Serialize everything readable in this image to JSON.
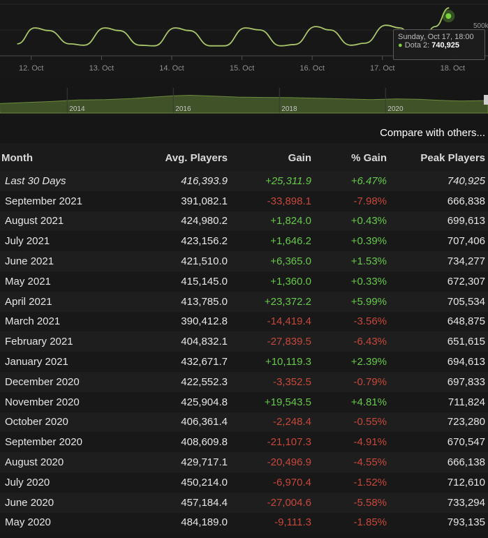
{
  "chart_data": [
    {
      "type": "line",
      "x_ticks": [
        "12. Oct",
        "13. Oct",
        "14. Oct",
        "15. Oct",
        "16. Oct",
        "17. Oct",
        "18. Oct"
      ],
      "y_tick": "500k",
      "series": [
        {
          "name": "Dota 2",
          "x": [
            11.8,
            12.05,
            12.25,
            12.55,
            12.75,
            13.05,
            13.25,
            13.55,
            13.75,
            14.05,
            14.25,
            14.55,
            14.75,
            15.05,
            15.25,
            15.55,
            15.75,
            16.05,
            16.25,
            16.55,
            16.75,
            17.05,
            17.25,
            17.45,
            17.55,
            17.75,
            17.95
          ],
          "y": [
            470000,
            590000,
            570000,
            470000,
            460000,
            590000,
            570000,
            460000,
            455000,
            590000,
            570000,
            455000,
            455000,
            590000,
            575000,
            455000,
            465000,
            600000,
            575000,
            460000,
            475000,
            610000,
            590000,
            490000,
            470000,
            600000,
            740925
          ]
        }
      ],
      "tooltip": {
        "date": "Sunday, Oct 17, 18:00",
        "series": "Dota 2:",
        "value": "740,925"
      }
    },
    {
      "type": "area",
      "x_ticks": [
        "2014",
        "2016",
        "2018",
        "2020"
      ],
      "x": [
        2012.7,
        2013.2,
        2013.7,
        2014.2,
        2014.7,
        2015.2,
        2015.6,
        2016.0,
        2016.3,
        2016.7,
        2017.2,
        2017.7,
        2018.2,
        2018.7,
        2019.2,
        2019.7,
        2020.2,
        2020.6,
        2021.0,
        2021.4,
        2021.8
      ],
      "y": [
        0.52,
        0.58,
        0.64,
        0.72,
        0.74,
        0.8,
        0.88,
        0.95,
        0.98,
        0.94,
        0.88,
        0.86,
        0.85,
        0.82,
        0.78,
        0.74,
        0.78,
        0.76,
        0.7,
        0.66,
        0.68
      ]
    },
    {
      "type": "table",
      "columns": [
        "Month",
        "Avg. Players",
        "Gain",
        "% Gain",
        "Peak Players"
      ],
      "rows": [
        [
          "Last 30 Days",
          "416,393.9",
          "+25,311.9",
          "+6.47%",
          "740,925"
        ],
        [
          "September 2021",
          "391,082.1",
          "-33,898.1",
          "-7.98%",
          "666,838"
        ],
        [
          "August 2021",
          "424,980.2",
          "+1,824.0",
          "+0.43%",
          "699,613"
        ],
        [
          "July 2021",
          "423,156.2",
          "+1,646.2",
          "+0.39%",
          "707,406"
        ],
        [
          "June 2021",
          "421,510.0",
          "+6,365.0",
          "+1.53%",
          "734,277"
        ],
        [
          "May 2021",
          "415,145.0",
          "+1,360.0",
          "+0.33%",
          "672,307"
        ],
        [
          "April 2021",
          "413,785.0",
          "+23,372.2",
          "+5.99%",
          "705,534"
        ],
        [
          "March 2021",
          "390,412.8",
          "-14,419.4",
          "-3.56%",
          "648,875"
        ],
        [
          "February 2021",
          "404,832.1",
          "-27,839.5",
          "-6.43%",
          "651,615"
        ],
        [
          "January 2021",
          "432,671.7",
          "+10,119.3",
          "+2.39%",
          "694,613"
        ],
        [
          "December 2020",
          "422,552.3",
          "-3,352.5",
          "-0.79%",
          "697,833"
        ],
        [
          "November 2020",
          "425,904.8",
          "+19,543.5",
          "+4.81%",
          "711,824"
        ],
        [
          "October 2020",
          "406,361.4",
          "-2,248.4",
          "-0.55%",
          "723,280"
        ],
        [
          "September 2020",
          "408,609.8",
          "-21,107.3",
          "-4.91%",
          "670,547"
        ],
        [
          "August 2020",
          "429,717.1",
          "-20,496.9",
          "-4.55%",
          "666,138"
        ],
        [
          "July 2020",
          "450,214.0",
          "-6,970.4",
          "-1.52%",
          "712,610"
        ],
        [
          "June 2020",
          "457,184.4",
          "-27,004.6",
          "-5.58%",
          "733,294"
        ],
        [
          "May 2020",
          "484,189.0",
          "-9,111.3",
          "-1.85%",
          "793,135"
        ]
      ]
    }
  ],
  "compare_label": "Compare with others...",
  "colors": {
    "line": "#a9c66a",
    "area": "#3f5228",
    "positive": "#66c94a",
    "negative": "#c8473b",
    "highlight": "#7bd13a"
  }
}
